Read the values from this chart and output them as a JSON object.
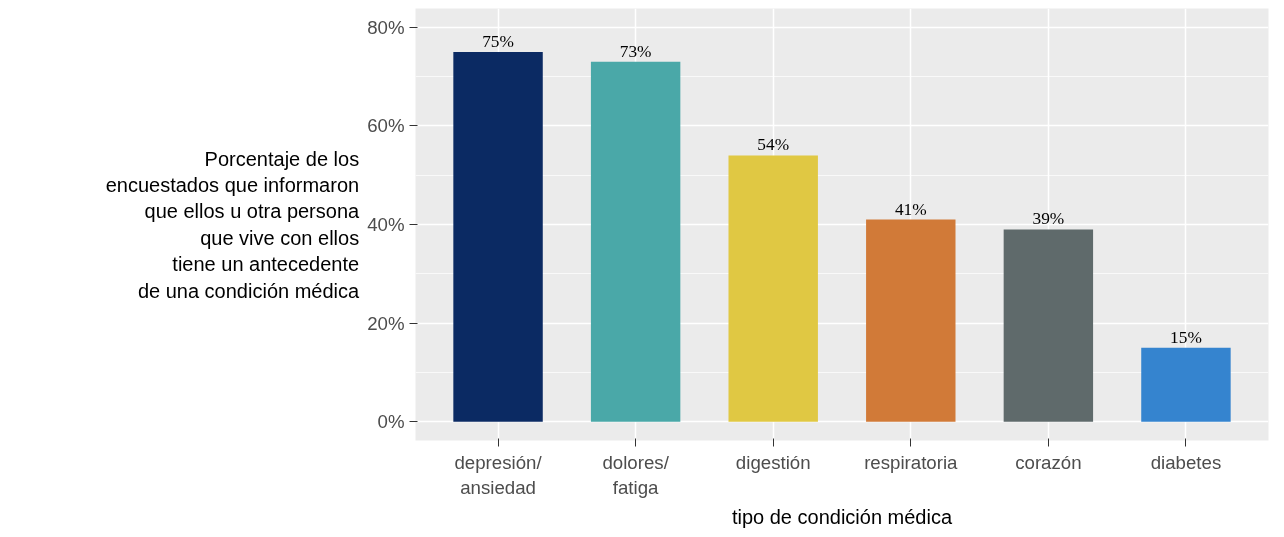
{
  "chart_data": {
    "type": "bar",
    "ylabel": "Porcentaje de los\nencuestados que informaron\nque ellos u otra persona\nque vive con ellos\ntiene un antecedente\nde una condición médica",
    "xlabel": "tipo de condición médica",
    "categories": [
      "depresión/\nansiedad",
      "dolores/\nfatiga",
      "digestión",
      "respiratoria",
      "corazón",
      "diabetes"
    ],
    "values": [
      75,
      73,
      54,
      41,
      39,
      15
    ],
    "value_labels": [
      "75%",
      "73%",
      "54%",
      "41%",
      "39%",
      "15%"
    ],
    "colors": [
      "#0b2a63",
      "#4aa8a8",
      "#e0c843",
      "#d17a38",
      "#5f6a6b",
      "#3584cf"
    ],
    "ylim": [
      -3.8,
      83.8
    ],
    "yticks": [
      {
        "value": 0,
        "label": "0%"
      },
      {
        "value": 20,
        "label": "20%"
      },
      {
        "value": 40,
        "label": "40%"
      },
      {
        "value": 60,
        "label": "60%"
      },
      {
        "value": 80,
        "label": "80%"
      }
    ],
    "grid": true
  }
}
